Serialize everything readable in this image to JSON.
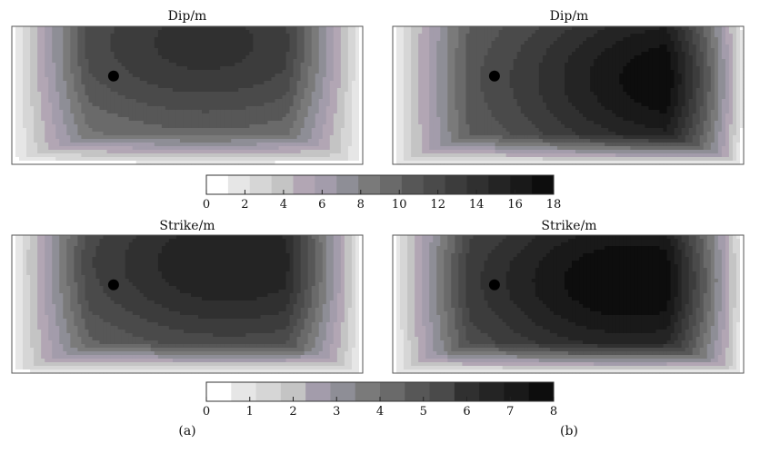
{
  "figure": {
    "panel_labels": [
      "(a)",
      "(b)"
    ],
    "colorbar_dip": {
      "ticks": [
        "0",
        "2",
        "4",
        "6",
        "8",
        "10",
        "12",
        "14",
        "16",
        "18"
      ],
      "min": 0,
      "max": 18,
      "levels": 16
    },
    "colorbar_strike": {
      "ticks": [
        "0",
        "1",
        "2",
        "3",
        "4",
        "5",
        "6",
        "7",
        "8"
      ],
      "min": 0,
      "max": 8,
      "levels": 14
    }
  },
  "palette": {
    "levels": [
      "#ffffff",
      "#e6e6e6",
      "#d6d6d6",
      "#c4c4c4",
      "#b2a6b4",
      "#a39cab",
      "#8e8e96",
      "#7a7a7a",
      "#6a6a6a",
      "#575757",
      "#4a4a4a",
      "#3c3c3c",
      "#303030",
      "#242424",
      "#191919",
      "#0d0d0d"
    ],
    "marker": "#000000",
    "frame": "#555555"
  },
  "chart_data": [
    {
      "type": "heatmap",
      "title": "Dip/m",
      "panel": "(a)",
      "quantity_range": [
        0,
        18
      ],
      "peak": {
        "x": 0.55,
        "y": 0.12,
        "value": 14
      },
      "marker": {
        "x": 0.29,
        "y": 0.36
      }
    },
    {
      "type": "heatmap",
      "title": "Dip/m",
      "panel": "(b)",
      "quantity_range": [
        0,
        18
      ],
      "peak": {
        "x": 0.84,
        "y": 0.38,
        "value": 18
      },
      "marker": {
        "x": 0.29,
        "y": 0.36
      }
    },
    {
      "type": "heatmap",
      "title": "Strike/m",
      "panel": "(a)",
      "quantity_range": [
        0,
        8
      ],
      "peak": {
        "x": 0.62,
        "y": 0.2,
        "value": 7
      },
      "marker": {
        "x": 0.29,
        "y": 0.36
      }
    },
    {
      "type": "heatmap",
      "title": "Strike/m",
      "panel": "(b)",
      "quantity_range": [
        0,
        8
      ],
      "peak": {
        "x": 0.68,
        "y": 0.33,
        "value": 8
      },
      "marker": {
        "x": 0.29,
        "y": 0.36
      }
    }
  ]
}
